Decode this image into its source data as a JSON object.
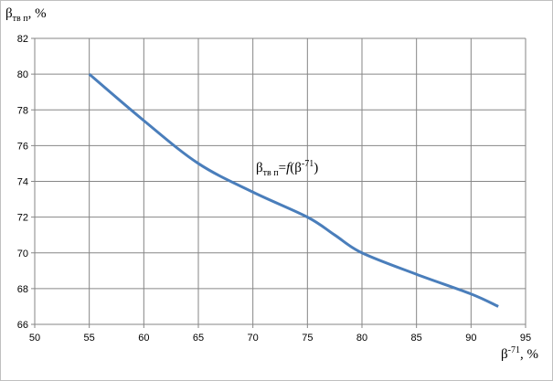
{
  "chart_data": {
    "type": "line",
    "ylabel": [
      "β",
      "тв п",
      ", %"
    ],
    "xlabel": [
      "β",
      "-71",
      ", %"
    ],
    "annotation": [
      "β",
      "тв п",
      "=",
      "f",
      "(β",
      "-71",
      ")"
    ],
    "series": [
      {
        "color": "#4a7ebb",
        "x": [
          55,
          60,
          65,
          70,
          75,
          77.5,
          80,
          85,
          90,
          92.5
        ],
        "values": [
          80,
          77.4,
          75,
          73.4,
          72,
          71,
          70,
          68.8,
          67.7,
          67
        ]
      }
    ],
    "xlim": [
      50,
      95
    ],
    "xticks": [
      50,
      55,
      60,
      65,
      70,
      75,
      80,
      85,
      90,
      95
    ],
    "ylim": [
      66,
      82
    ],
    "yticks": [
      66,
      68,
      70,
      72,
      74,
      76,
      78,
      80,
      82
    ],
    "grid": true
  }
}
